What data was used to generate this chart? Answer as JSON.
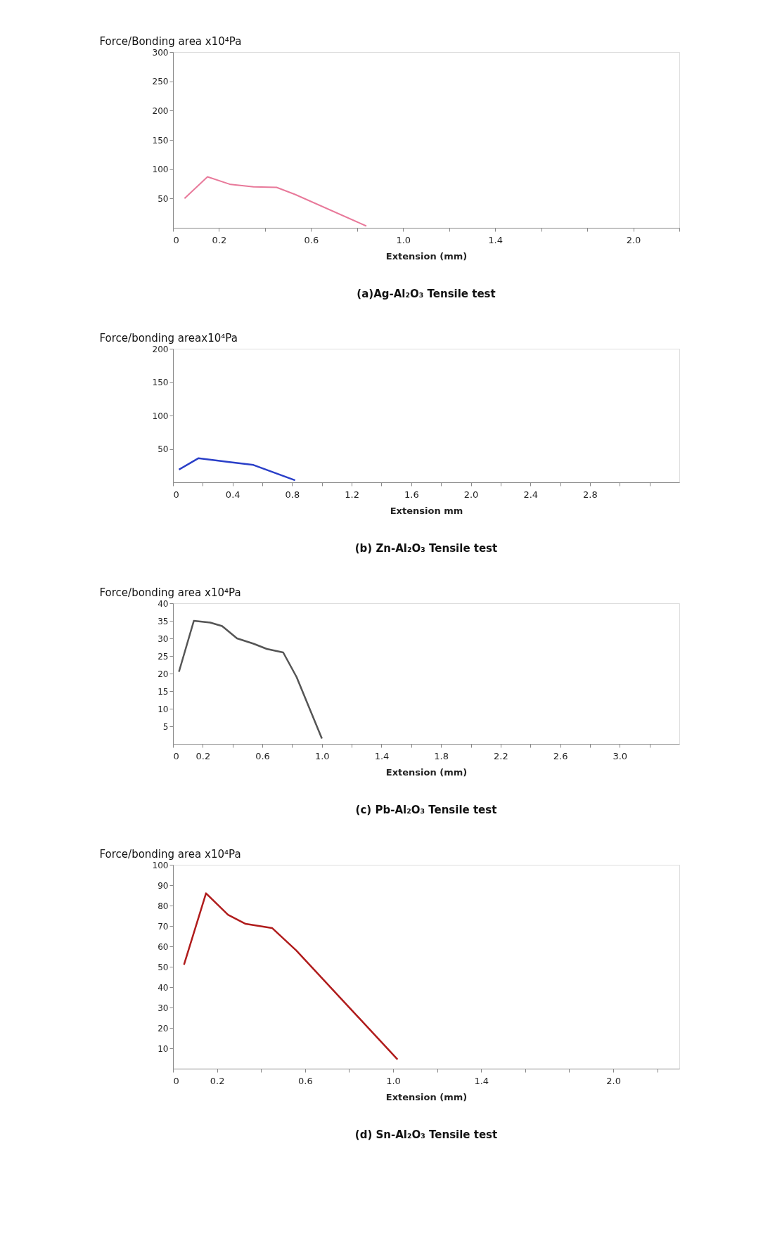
{
  "chart_data": [
    {
      "type": "line",
      "title": "(a)Ag-Al₂O₃ Tensile test",
      "ylabel": "Force/Bonding area x10⁴Pa",
      "xlabel": "Extension (mm)",
      "grid": false,
      "x": [
        0.05,
        0.15,
        0.25,
        0.35,
        0.45,
        0.53,
        0.84
      ],
      "series": [
        {
          "color": "#e8799a",
          "values": [
            50,
            87,
            74,
            70,
            69,
            57,
            3
          ]
        }
      ],
      "xlim": [
        0,
        2.2
      ],
      "ylim": [
        0,
        300
      ],
      "xticks": [
        0,
        0.2,
        {
          "value": 0.4,
          "label": null
        },
        0.6,
        {
          "value": 0.8,
          "label": null
        },
        {
          "value": 1.0,
          "label": "1.0"
        },
        {
          "value": 1.2,
          "label": null
        },
        1.4,
        {
          "value": 1.6,
          "label": null
        },
        {
          "value": 1.8,
          "label": null
        },
        {
          "value": 2.0,
          "label": "2.0"
        },
        {
          "value": 2.2,
          "label": null
        }
      ],
      "yticks": [
        50,
        100,
        150,
        200,
        250,
        300
      ]
    },
    {
      "type": "line",
      "title": "(b) Zn-Al₂O₃ Tensile test",
      "ylabel": "Force/bonding areax10⁴Pa",
      "xlabel": "Extension mm",
      "grid": false,
      "x": [
        0.04,
        0.17,
        0.39,
        0.54,
        0.82
      ],
      "series": [
        {
          "color": "#2a3fc8",
          "values": [
            19,
            36,
            30,
            26,
            3
          ]
        }
      ],
      "xlim": [
        0,
        3.4
      ],
      "ylim": [
        0,
        200
      ],
      "xticks": [
        0,
        {
          "value": 0.2,
          "label": null
        },
        0.4,
        {
          "value": 0.6,
          "label": null
        },
        0.8,
        {
          "value": 1.0,
          "label": null
        },
        1.2,
        {
          "value": 1.4,
          "label": null
        },
        1.6,
        {
          "value": 1.8,
          "label": null
        },
        {
          "value": 2.0,
          "label": "2.0"
        },
        {
          "value": 2.2,
          "label": null
        },
        2.4,
        {
          "value": 2.6,
          "label": null
        },
        2.8,
        {
          "value": 3.0,
          "label": null
        },
        {
          "value": 3.2,
          "label": null
        }
      ],
      "yticks": [
        50,
        100,
        150,
        200
      ]
    },
    {
      "type": "line",
      "title": "(c) Pb-Al₂O₃ Tensile test",
      "ylabel": "Force/bonding area x10⁴Pa",
      "xlabel": "Extension (mm)",
      "grid": false,
      "x": [
        0.04,
        0.14,
        0.25,
        0.33,
        0.43,
        0.54,
        0.63,
        0.74,
        0.83,
        1.0
      ],
      "series": [
        {
          "color": "#555555",
          "values": [
            20.5,
            35,
            34.5,
            33.5,
            30,
            28.5,
            27,
            26,
            19,
            1.5
          ]
        }
      ],
      "xlim": [
        0,
        3.4
      ],
      "ylim": [
        0,
        40
      ],
      "xticks": [
        0,
        0.2,
        {
          "value": 0.4,
          "label": null
        },
        0.6,
        {
          "value": 0.8,
          "label": null
        },
        {
          "value": 1.0,
          "label": "1.0"
        },
        {
          "value": 1.2,
          "label": null
        },
        1.4,
        {
          "value": 1.6,
          "label": null
        },
        1.8,
        {
          "value": 2.0,
          "label": null
        },
        2.2,
        {
          "value": 2.4,
          "label": null
        },
        2.6,
        {
          "value": 2.8,
          "label": null
        },
        {
          "value": 3.0,
          "label": "3.0"
        },
        {
          "value": 3.2,
          "label": null
        }
      ],
      "yticks": [
        5,
        10,
        15,
        20,
        25,
        30,
        35,
        40
      ]
    },
    {
      "type": "line",
      "title": "(d) Sn-Al₂O₃ Tensile test",
      "ylabel": "Force/bonding area x10⁴Pa",
      "xlabel": "Extension (mm)",
      "grid": false,
      "x": [
        0.05,
        0.15,
        0.25,
        0.33,
        0.45,
        0.56,
        1.02
      ],
      "series": [
        {
          "color": "#b01c1c",
          "values": [
            51,
            86,
            75.5,
            71,
            69,
            58,
            4.5
          ]
        }
      ],
      "xlim": [
        0,
        2.3
      ],
      "ylim": [
        0,
        100
      ],
      "xticks": [
        0,
        0.2,
        {
          "value": 0.4,
          "label": null
        },
        0.6,
        {
          "value": 0.8,
          "label": null
        },
        {
          "value": 1.0,
          "label": "1.0"
        },
        {
          "value": 1.2,
          "label": null
        },
        1.4,
        {
          "value": 1.6,
          "label": null
        },
        {
          "value": 1.8,
          "label": null
        },
        {
          "value": 2.0,
          "label": "2.0"
        },
        {
          "value": 2.2,
          "label": null
        }
      ],
      "yticks": [
        10,
        20,
        30,
        40,
        50,
        60,
        70,
        80,
        90,
        100
      ]
    }
  ]
}
